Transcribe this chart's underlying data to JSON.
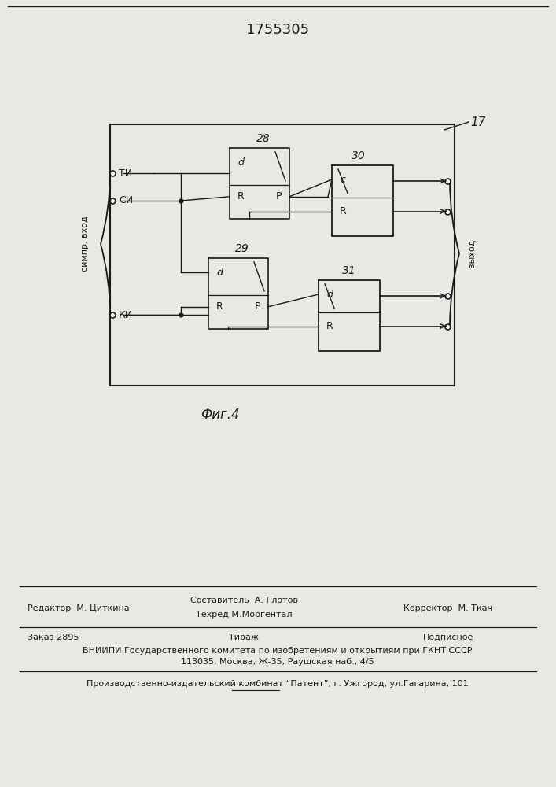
{
  "title": "1755305",
  "fig_label": "Фиг.4",
  "block_label": "17",
  "bg_color": "#e8e8e4",
  "line_color": "#1a1a1a",
  "footer_line1_left": "Редактор  М. Циткина",
  "footer_line1_center1": "Составитель  А. Глотов",
  "footer_line1_center2": "Техред М.Моргентал",
  "footer_line1_right": "Корректор  М. Ткач",
  "footer_line2_left": "Заказ 2895",
  "footer_line2_center": "Тираж",
  "footer_line2_right": "Подписное",
  "footer_line3": "ВНИИПИ Государственного комитета по изобретениям и открытиям при ГКНТ СССР",
  "footer_line4": "113035, Москва, Ж-35, Раушская наб., 4/5",
  "footer_line5": "Производственно-издательский комбинат “Патент”, г. Ужгород, ул.Гагарина, 101"
}
